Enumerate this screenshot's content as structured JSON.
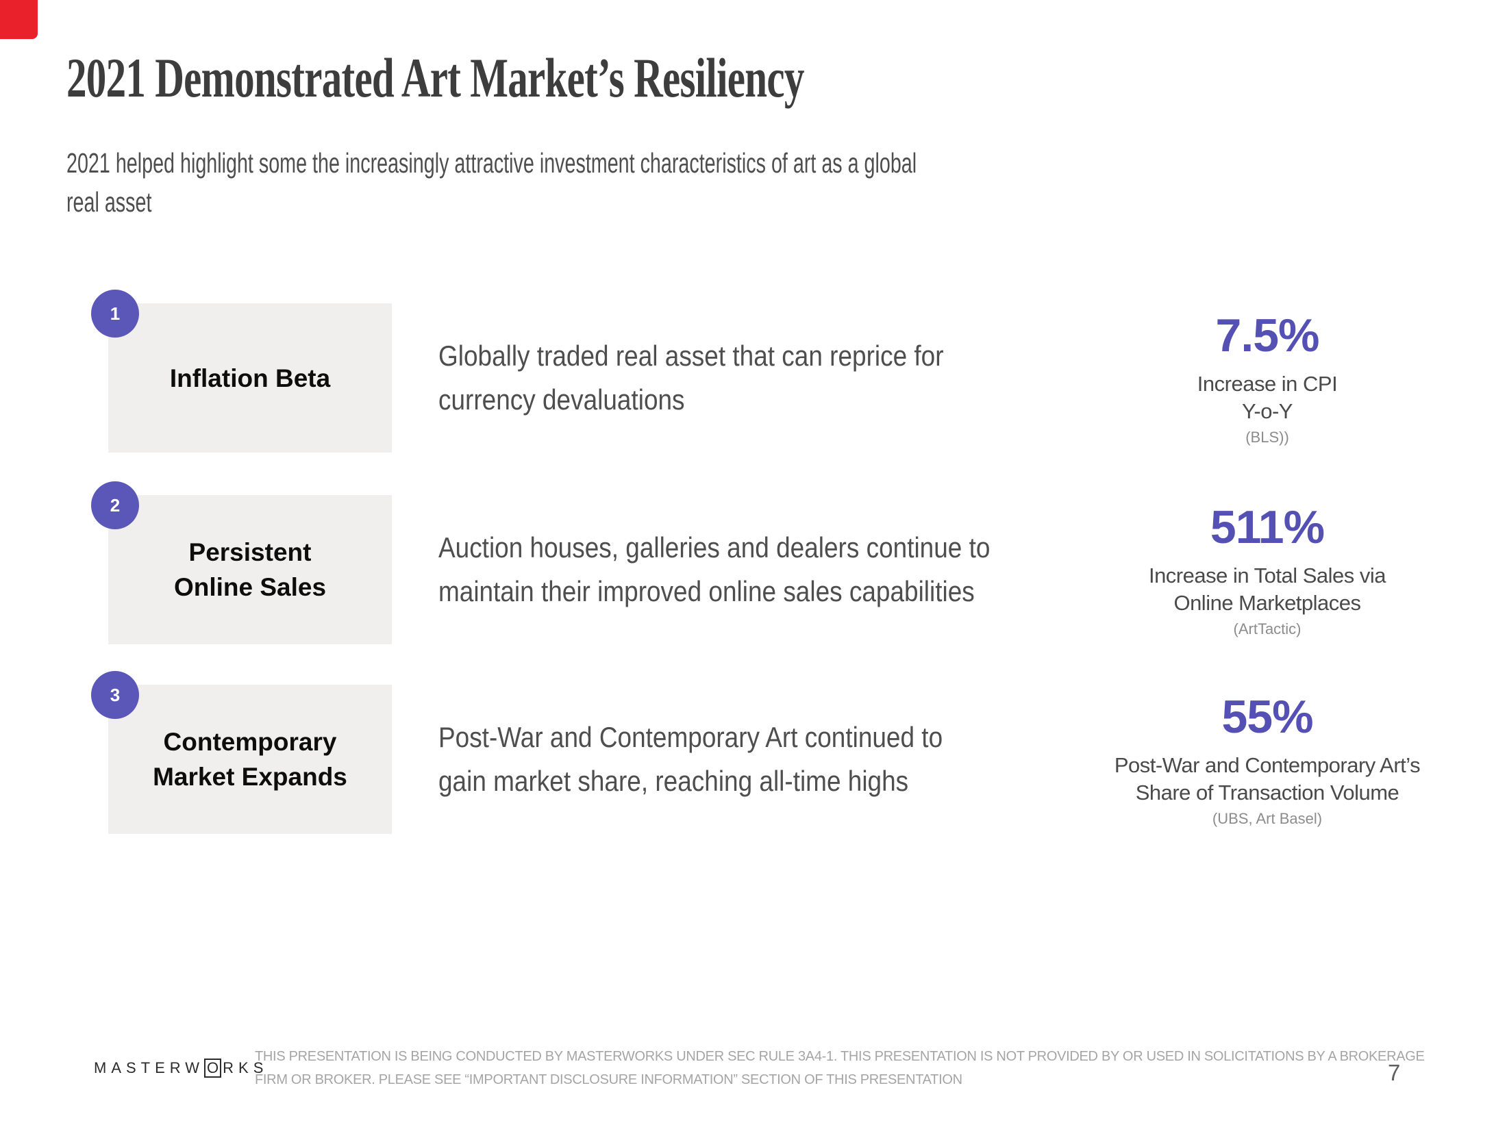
{
  "colors": {
    "accent_purple": "#5551b4",
    "badge_purple": "#5a57b8",
    "card_background": "#f0efed",
    "corner_marker_red": "#e8212a"
  },
  "header": {
    "title": "2021 Demonstrated Art Market’s Resiliency",
    "subtitle_lines": [
      "2021 helped highlight some the increasingly attractive investment characteristics of art as a global",
      "real asset"
    ]
  },
  "rows": [
    {
      "number": "1",
      "card_title_lines": [
        "Inflation Beta"
      ],
      "desc_lines": [
        "Globally traded real asset that can reprice for",
        "currency devaluations"
      ],
      "stat_value": "7.5%",
      "caption_lines": [
        "Increase in CPI",
        "Y-o-Y"
      ],
      "source": "(BLS))"
    },
    {
      "number": "2",
      "card_title_lines": [
        "Persistent",
        "Online Sales"
      ],
      "desc_lines": [
        "Auction houses, galleries and dealers continue to",
        "maintain their improved online sales capabilities"
      ],
      "stat_value": "511%",
      "caption_lines": [
        "Increase in Total Sales via",
        "Online Marketplaces"
      ],
      "source": "(ArtTactic)"
    },
    {
      "number": "3",
      "card_title_lines": [
        "Contemporary",
        "Market Expands"
      ],
      "desc_lines": [
        "Post-War and Contemporary Art continued to",
        "gain market share, reaching all-time highs"
      ],
      "stat_value": "55%",
      "caption_lines": [
        "Post-War and Contemporary Art’s",
        "Share of Transaction Volume"
      ],
      "source": "(UBS, Art Basel)"
    }
  ],
  "footer": {
    "logo": {
      "part1": "MASTERW",
      "o": "O",
      "part2": "RKS"
    },
    "disclaimer_lines": [
      "THIS PRESENTATION  IS BEING CONDUCTED BY MASTERWORKS UNDER SEC RULE 3A4-1. THIS PRESENTATION  IS NOT PROVIDED BY OR USED IN SOLICITATIONS BY A BROKERAGE",
      "FIRM OR BROKER. PLEASE SEE “IMPORTANT DISCLOSURE INFORMATION” SECTION OF THIS PRESENTATION"
    ],
    "page_number": "7"
  }
}
